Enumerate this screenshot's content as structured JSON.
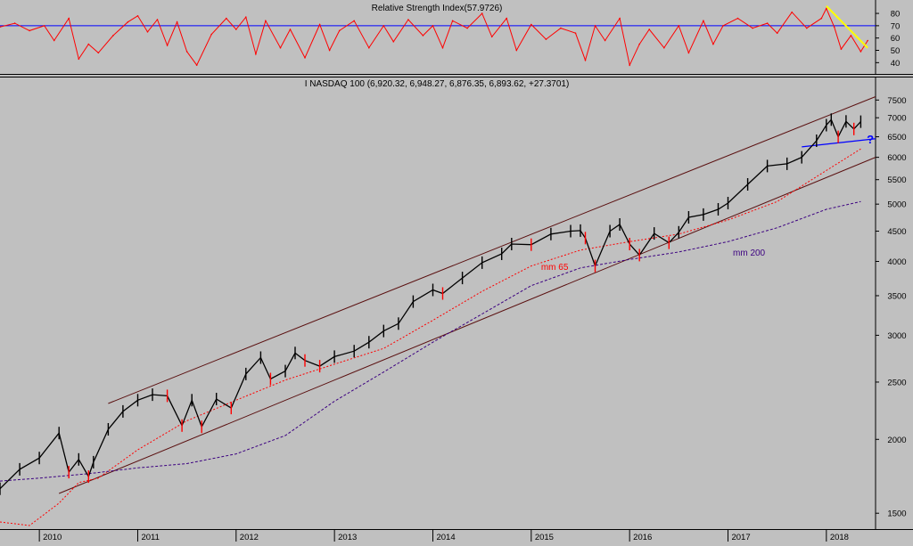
{
  "chart_data": [
    {
      "type": "line",
      "title": "Relative Strength Index(57.9726)",
      "ylim": [
        33,
        88
      ],
      "y_ticks": [
        40,
        50,
        60,
        70,
        80
      ],
      "reference_line": 70,
      "colors": {
        "rsi": "#ff0000",
        "reference": "#0000ff",
        "trendline": "#ffff00"
      },
      "series": [
        {
          "x": [
            2009.6,
            2009.75,
            2009.9,
            2010.05,
            2010.15,
            2010.3,
            2010.4,
            2010.5,
            2010.6,
            2010.75,
            2010.9,
            2011.0,
            2011.1,
            2011.2,
            2011.3,
            2011.4,
            2011.5,
            2011.6,
            2011.75,
            2011.9,
            2012.0,
            2012.1,
            2012.2,
            2012.3,
            2012.45,
            2012.55,
            2012.7,
            2012.85,
            2012.95,
            2013.05,
            2013.2,
            2013.35,
            2013.5,
            2013.6,
            2013.75,
            2013.9,
            2014.0,
            2014.1,
            2014.2,
            2014.35,
            2014.5,
            2014.6,
            2014.75,
            2014.85,
            2015.0,
            2015.15,
            2015.3,
            2015.45,
            2015.55,
            2015.65,
            2015.75,
            2015.9,
            2016.0,
            2016.1,
            2016.2,
            2016.35,
            2016.5,
            2016.6,
            2016.75,
            2016.85,
            2016.95,
            2017.1,
            2017.25,
            2017.4,
            2017.5,
            2017.65,
            2017.8,
            2017.95,
            2018.0,
            2018.08,
            2018.15,
            2018.25,
            2018.35,
            2018.42
          ],
          "y": [
            69,
            72,
            66,
            70,
            58,
            76,
            43,
            55,
            48,
            62,
            73,
            78,
            65,
            75,
            54,
            73,
            49,
            38,
            63,
            76,
            67,
            77,
            47,
            74,
            52,
            67,
            44,
            71,
            50,
            66,
            74,
            52,
            70,
            57,
            75,
            62,
            70,
            52,
            74,
            68,
            80,
            61,
            76,
            50,
            71,
            59,
            68,
            64,
            42,
            70,
            58,
            76,
            38,
            55,
            67,
            52,
            70,
            48,
            74,
            55,
            70,
            76,
            68,
            72,
            64,
            81,
            68,
            76,
            84,
            69,
            51,
            62,
            49,
            58
          ]
        }
      ],
      "trendline": {
        "x": [
          2018.0,
          2018.42
        ],
        "y": [
          86,
          52
        ]
      }
    },
    {
      "type": "line",
      "title": "I NASDAQ 100 (6,920.32, 6,948.27, 6,876.35, 6,893.62, +27.3701)",
      "scale": "log",
      "ylim": [
        1420,
        7800
      ],
      "y_ticks": [
        1500,
        2000,
        2500,
        3000,
        3500,
        4000,
        4500,
        5000,
        5500,
        6000,
        6500,
        7000,
        7500
      ],
      "xlim": [
        2009.6,
        2018.5
      ],
      "x_ticks": [
        "2010",
        "2011",
        "2012",
        "2013",
        "2014",
        "2015",
        "2016",
        "2017",
        "2018"
      ],
      "x_tick_values": [
        2010,
        2011,
        2012,
        2013,
        2014,
        2015,
        2016,
        2017,
        2018
      ],
      "colors": {
        "price": "#000000",
        "price_down": "#ff0000",
        "mm65": "#ff0000",
        "mm200": "#3b0080",
        "channel": "#5a1010",
        "support": "#0000ff"
      },
      "series": [
        {
          "name": "I NASDAQ 100",
          "x": [
            2009.6,
            2009.8,
            2010.0,
            2010.2,
            2010.3,
            2010.4,
            2010.5,
            2010.55,
            2010.7,
            2010.85,
            2011.0,
            2011.15,
            2011.3,
            2011.45,
            2011.55,
            2011.65,
            2011.8,
            2011.95,
            2012.1,
            2012.25,
            2012.35,
            2012.5,
            2012.6,
            2012.7,
            2012.85,
            2013.0,
            2013.2,
            2013.35,
            2013.5,
            2013.65,
            2013.8,
            2014.0,
            2014.1,
            2014.3,
            2014.5,
            2014.7,
            2014.8,
            2015.0,
            2015.2,
            2015.4,
            2015.5,
            2015.55,
            2015.65,
            2015.8,
            2015.9,
            2016.0,
            2016.1,
            2016.25,
            2016.4,
            2016.5,
            2016.6,
            2016.75,
            2016.9,
            2017.0,
            2017.2,
            2017.4,
            2017.6,
            2017.75,
            2017.9,
            2018.0,
            2018.05,
            2018.12,
            2018.2,
            2018.28,
            2018.35
          ],
          "y": [
            1650,
            1780,
            1860,
            2050,
            1760,
            1850,
            1730,
            1830,
            2080,
            2230,
            2330,
            2380,
            2370,
            2110,
            2330,
            2100,
            2340,
            2260,
            2580,
            2750,
            2530,
            2610,
            2800,
            2720,
            2660,
            2760,
            2820,
            2920,
            3050,
            3140,
            3420,
            3580,
            3530,
            3750,
            3980,
            4120,
            4280,
            4270,
            4450,
            4500,
            4510,
            4380,
            3930,
            4500,
            4620,
            4280,
            4100,
            4460,
            4300,
            4480,
            4750,
            4800,
            4900,
            5020,
            5400,
            5800,
            5850,
            6000,
            6400,
            6800,
            6950,
            6500,
            6900,
            6700,
            6894
          ]
        },
        {
          "name": "mm 65",
          "x": [
            2009.6,
            2009.9,
            2010.2,
            2010.4,
            2010.6,
            2011.0,
            2011.5,
            2012.0,
            2012.5,
            2013.0,
            2013.5,
            2014.0,
            2014.5,
            2015.0,
            2015.5,
            2016.0,
            2016.5,
            2017.0,
            2017.5,
            2018.0,
            2018.35
          ],
          "y": [
            1450,
            1430,
            1560,
            1690,
            1720,
            1920,
            2150,
            2330,
            2520,
            2680,
            2850,
            3180,
            3560,
            3930,
            4180,
            4320,
            4450,
            4700,
            5050,
            5700,
            6200
          ]
        },
        {
          "name": "mm 200",
          "x": [
            2009.6,
            2010.0,
            2010.5,
            2011.0,
            2011.5,
            2012.0,
            2012.5,
            2013.0,
            2013.5,
            2014.0,
            2014.5,
            2015.0,
            2015.5,
            2016.0,
            2016.5,
            2017.0,
            2017.5,
            2018.0,
            2018.35
          ],
          "y": [
            1700,
            1720,
            1750,
            1790,
            1820,
            1890,
            2030,
            2320,
            2600,
            2920,
            3260,
            3640,
            3900,
            4030,
            4150,
            4320,
            4560,
            4900,
            5050
          ]
        }
      ],
      "channel_upper": {
        "x": [
          2010.7,
          2018.5
        ],
        "y": [
          2300,
          7600
        ]
      },
      "channel_lower": {
        "x": [
          2010.2,
          2018.5
        ],
        "y": [
          1620,
          6000
        ]
      },
      "support_line": {
        "x": [
          2017.75,
          2018.5
        ],
        "y": [
          6250,
          6450
        ]
      },
      "annotations": [
        {
          "text": "mm 65",
          "x": 2015.1,
          "y": 3870
        },
        {
          "text": "mm 200",
          "x": 2017.05,
          "y": 4090
        },
        {
          "text": "?",
          "x": 2018.41,
          "y": 6330
        }
      ]
    }
  ]
}
